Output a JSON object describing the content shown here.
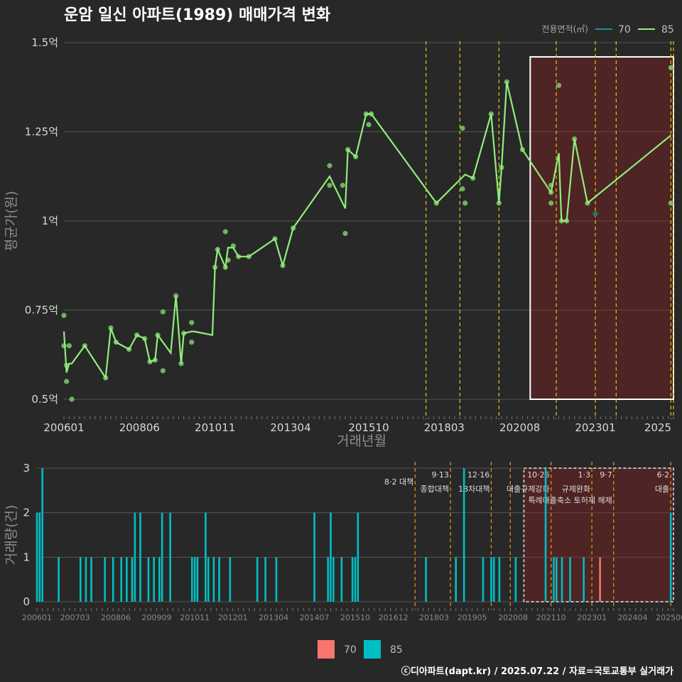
{
  "title": "운암 일신 아파트(1989) 매매가격 변화",
  "caption": "ⓒ디아파트(dapt.kr) / 2025.07.22 / 자료=국토교통부 실거래가",
  "colors": {
    "s70_line": "#2a8a8a",
    "s85_line": "#90ee7a",
    "s85_point": "#7acc6a",
    "s70_point": "#2e6e6a",
    "bar70": "#f8766d",
    "bar85": "#00bfc4",
    "event": "#e6c619",
    "event2": "#e59a19",
    "highlight": "rgba(150,30,30,0.35)"
  },
  "chart_data": [
    {
      "type": "line",
      "title": "운암 일신 아파트(1989) 매매가격 변화",
      "xlabel": "거래년월",
      "ylabel": "평균가(원)",
      "xlim": [
        "2006-01",
        "2025-07"
      ],
      "ylim": [
        0.45,
        1.52
      ],
      "x_ticks": [
        "200601",
        "200806",
        "201011",
        "201304",
        "201510",
        "201803",
        "202008",
        "202301",
        "2025"
      ],
      "y_ticks": [
        "0.5억",
        "0.75억",
        "1억",
        "1.25억",
        "1.5억"
      ],
      "legend": {
        "title": "전용면적(㎡)",
        "position": "top-right",
        "items": [
          "70",
          "85"
        ]
      },
      "grid": true,
      "highlight": {
        "from": "2020-12",
        "to": "2025-07",
        "ymin": 0.5,
        "ymax": 1.46
      },
      "event_dates": [
        "2017-08",
        "2018-09",
        "2019-12",
        "2021-10",
        "2023-01",
        "2023-09",
        "2025-06",
        "2025-07"
      ],
      "series": [
        {
          "name": "85",
          "values": [
            [
              "2006-01",
              0.69
            ],
            [
              "2006-02",
              0.575
            ],
            [
              "2006-03",
              0.6
            ],
            [
              "2006-04",
              0.6
            ],
            [
              "2006-09",
              0.65
            ],
            [
              "2007-05",
              0.56
            ],
            [
              "2007-07",
              0.7
            ],
            [
              "2007-09",
              0.66
            ],
            [
              "2008-02",
              0.64
            ],
            [
              "2008-05",
              0.68
            ],
            [
              "2008-08",
              0.67
            ],
            [
              "2008-10",
              0.605
            ],
            [
              "2008-12",
              0.61
            ],
            [
              "2009-01",
              0.68
            ],
            [
              "2009-06",
              0.63
            ],
            [
              "2009-08",
              0.79
            ],
            [
              "2009-10",
              0.6
            ],
            [
              "2009-11",
              0.685
            ],
            [
              "2010-02",
              0.69
            ],
            [
              "2010-03",
              0.69
            ],
            [
              "2010-10",
              0.68
            ],
            [
              "2010-11",
              0.87
            ],
            [
              "2010-12",
              0.92
            ],
            [
              "2011-03",
              0.87
            ],
            [
              "2011-04",
              0.925
            ],
            [
              "2011-06",
              0.925
            ],
            [
              "2011-08",
              0.9
            ],
            [
              "2011-12",
              0.9
            ],
            [
              "2012-10",
              0.95
            ],
            [
              "2013-01",
              0.875
            ],
            [
              "2013-05",
              0.98
            ],
            [
              "2014-07",
              1.125
            ],
            [
              "2015-01",
              1.035
            ],
            [
              "2015-02",
              1.2
            ],
            [
              "2015-05",
              1.18
            ],
            [
              "2015-09",
              1.3
            ],
            [
              "2015-11",
              1.3
            ],
            [
              "2017-12",
              1.05
            ],
            [
              "2018-11",
              1.13
            ],
            [
              "2019-02",
              1.12
            ],
            [
              "2019-09",
              1.3
            ],
            [
              "2019-12",
              1.05
            ],
            [
              "2020-01",
              1.15
            ],
            [
              "2020-03",
              1.39
            ],
            [
              "2020-09",
              1.2
            ],
            [
              "2021-08",
              1.08
            ],
            [
              "2021-11",
              1.19
            ],
            [
              "2021-12",
              1.0
            ],
            [
              "2022-02",
              1.0
            ],
            [
              "2022-05",
              1.23
            ],
            [
              "2022-10",
              1.05
            ],
            [
              "2025-06",
              1.24
            ]
          ]
        },
        {
          "name": "70",
          "values": [
            [
              "2023-01",
              1.02
            ]
          ]
        }
      ],
      "points_85": [
        [
          "2006-01",
          0.735
        ],
        [
          "2006-01",
          0.65
        ],
        [
          "2006-02",
          0.55
        ],
        [
          "2006-02",
          0.595
        ],
        [
          "2006-03",
          0.65
        ],
        [
          "2006-04",
          0.5
        ],
        [
          "2006-09",
          0.65
        ],
        [
          "2007-05",
          0.56
        ],
        [
          "2007-07",
          0.7
        ],
        [
          "2007-09",
          0.66
        ],
        [
          "2008-02",
          0.64
        ],
        [
          "2008-05",
          0.68
        ],
        [
          "2008-08",
          0.67
        ],
        [
          "2008-10",
          0.605
        ],
        [
          "2008-12",
          0.61
        ],
        [
          "2009-01",
          0.68
        ],
        [
          "2009-03",
          0.58
        ],
        [
          "2009-03",
          0.745
        ],
        [
          "2009-08",
          0.79
        ],
        [
          "2009-10",
          0.6
        ],
        [
          "2009-11",
          0.685
        ],
        [
          "2010-02",
          0.66
        ],
        [
          "2010-02",
          0.715
        ],
        [
          "2010-11",
          0.87
        ],
        [
          "2010-12",
          0.92
        ],
        [
          "2011-03",
          0.87
        ],
        [
          "2011-03",
          0.97
        ],
        [
          "2011-04",
          0.89
        ],
        [
          "2011-06",
          0.93
        ],
        [
          "2011-08",
          0.9
        ],
        [
          "2011-12",
          0.9
        ],
        [
          "2012-10",
          0.95
        ],
        [
          "2013-01",
          0.875
        ],
        [
          "2013-05",
          0.98
        ],
        [
          "2014-07",
          1.155
        ],
        [
          "2014-07",
          1.1
        ],
        [
          "2014-12",
          1.1
        ],
        [
          "2015-01",
          0.965
        ],
        [
          "2015-02",
          1.2
        ],
        [
          "2015-05",
          1.18
        ],
        [
          "2015-09",
          1.3
        ],
        [
          "2015-10",
          1.27
        ],
        [
          "2015-11",
          1.3
        ],
        [
          "2017-12",
          1.05
        ],
        [
          "2018-10",
          1.09
        ],
        [
          "2018-10",
          1.26
        ],
        [
          "2018-11",
          1.05
        ],
        [
          "2019-02",
          1.12
        ],
        [
          "2019-09",
          1.3
        ],
        [
          "2019-12",
          1.05
        ],
        [
          "2020-01",
          1.15
        ],
        [
          "2020-03",
          1.39
        ],
        [
          "2020-09",
          1.2
        ],
        [
          "2021-08",
          1.1
        ],
        [
          "2021-08",
          1.08
        ],
        [
          "2021-08",
          1.05
        ],
        [
          "2021-11",
          1.38
        ],
        [
          "2021-12",
          1.0
        ],
        [
          "2022-02",
          1.0
        ],
        [
          "2022-05",
          1.23
        ],
        [
          "2022-10",
          1.05
        ],
        [
          "2025-06",
          1.43
        ],
        [
          "2025-06",
          1.05
        ]
      ]
    },
    {
      "type": "bar",
      "ylabel": "거래량(건)",
      "ylim": [
        0,
        3
      ],
      "y_ticks": [
        "0",
        "1",
        "2",
        "3"
      ],
      "x_ticks": [
        "200601",
        "200703",
        "200806",
        "200909",
        "201011",
        "201201",
        "201304",
        "201407",
        "201510",
        "201612",
        "201803",
        "201905",
        "202008",
        "202110",
        "202301",
        "202404",
        "202506"
      ],
      "legend": {
        "position": "bottom",
        "items": [
          "70",
          "85"
        ]
      },
      "highlight": {
        "from": "2020-12",
        "to": "2025-07"
      },
      "events": [
        {
          "date": "2017-08",
          "label": "8·2 대책",
          "sub": ""
        },
        {
          "date": "2018-09",
          "label": "9·13",
          "sub": "종합대책"
        },
        {
          "date": "2019-12",
          "label": "12·16",
          "sub": "18차대책"
        },
        {
          "date": "2020-07",
          "label": "",
          "sub": ""
        },
        {
          "date": "2021-10",
          "label": "10·26",
          "sub": "대출규제강화"
        },
        {
          "date": "2023-01",
          "label": "1·3",
          "sub": "규제완화"
        },
        {
          "date": "2023-09",
          "label": "9·7",
          "sub": "특례대출축소 토허제 해제"
        },
        {
          "date": "2025-06",
          "label": "6·2",
          "sub": "대출"
        }
      ],
      "series": [
        {
          "name": "85",
          "values": [
            [
              "2006-01",
              2
            ],
            [
              "2006-02",
              2
            ],
            [
              "2006-03",
              3
            ],
            [
              "2006-09",
              1
            ],
            [
              "2007-05",
              1
            ],
            [
              "2007-07",
              1
            ],
            [
              "2007-09",
              1
            ],
            [
              "2008-02",
              1
            ],
            [
              "2008-05",
              1
            ],
            [
              "2008-08",
              1
            ],
            [
              "2008-10",
              1
            ],
            [
              "2008-12",
              1
            ],
            [
              "2009-01",
              2
            ],
            [
              "2009-03",
              2
            ],
            [
              "2009-06",
              1
            ],
            [
              "2009-08",
              1
            ],
            [
              "2009-10",
              1
            ],
            [
              "2009-11",
              2
            ],
            [
              "2010-02",
              2
            ],
            [
              "2010-10",
              1
            ],
            [
              "2010-11",
              1
            ],
            [
              "2010-12",
              1
            ],
            [
              "2011-03",
              2
            ],
            [
              "2011-04",
              1
            ],
            [
              "2011-06",
              1
            ],
            [
              "2011-08",
              1
            ],
            [
              "2011-12",
              1
            ],
            [
              "2012-10",
              1
            ],
            [
              "2013-01",
              1
            ],
            [
              "2013-05",
              1
            ],
            [
              "2014-07",
              2
            ],
            [
              "2014-12",
              1
            ],
            [
              "2015-01",
              2
            ],
            [
              "2015-02",
              1
            ],
            [
              "2015-05",
              1
            ],
            [
              "2015-09",
              1
            ],
            [
              "2015-10",
              1
            ],
            [
              "2015-11",
              2
            ],
            [
              "2017-12",
              1
            ],
            [
              "2018-11",
              1
            ],
            [
              "2019-02",
              3
            ],
            [
              "2019-09",
              1
            ],
            [
              "2019-12",
              1
            ],
            [
              "2020-01",
              1
            ],
            [
              "2020-03",
              1
            ],
            [
              "2020-09",
              1
            ],
            [
              "2021-08",
              3
            ],
            [
              "2021-11",
              1
            ],
            [
              "2021-12",
              1
            ],
            [
              "2022-02",
              1
            ],
            [
              "2022-05",
              1
            ],
            [
              "2022-10",
              1
            ],
            [
              "2025-06",
              2
            ]
          ]
        },
        {
          "name": "70",
          "values": [
            [
              "2023-04",
              1
            ]
          ]
        }
      ]
    }
  ]
}
